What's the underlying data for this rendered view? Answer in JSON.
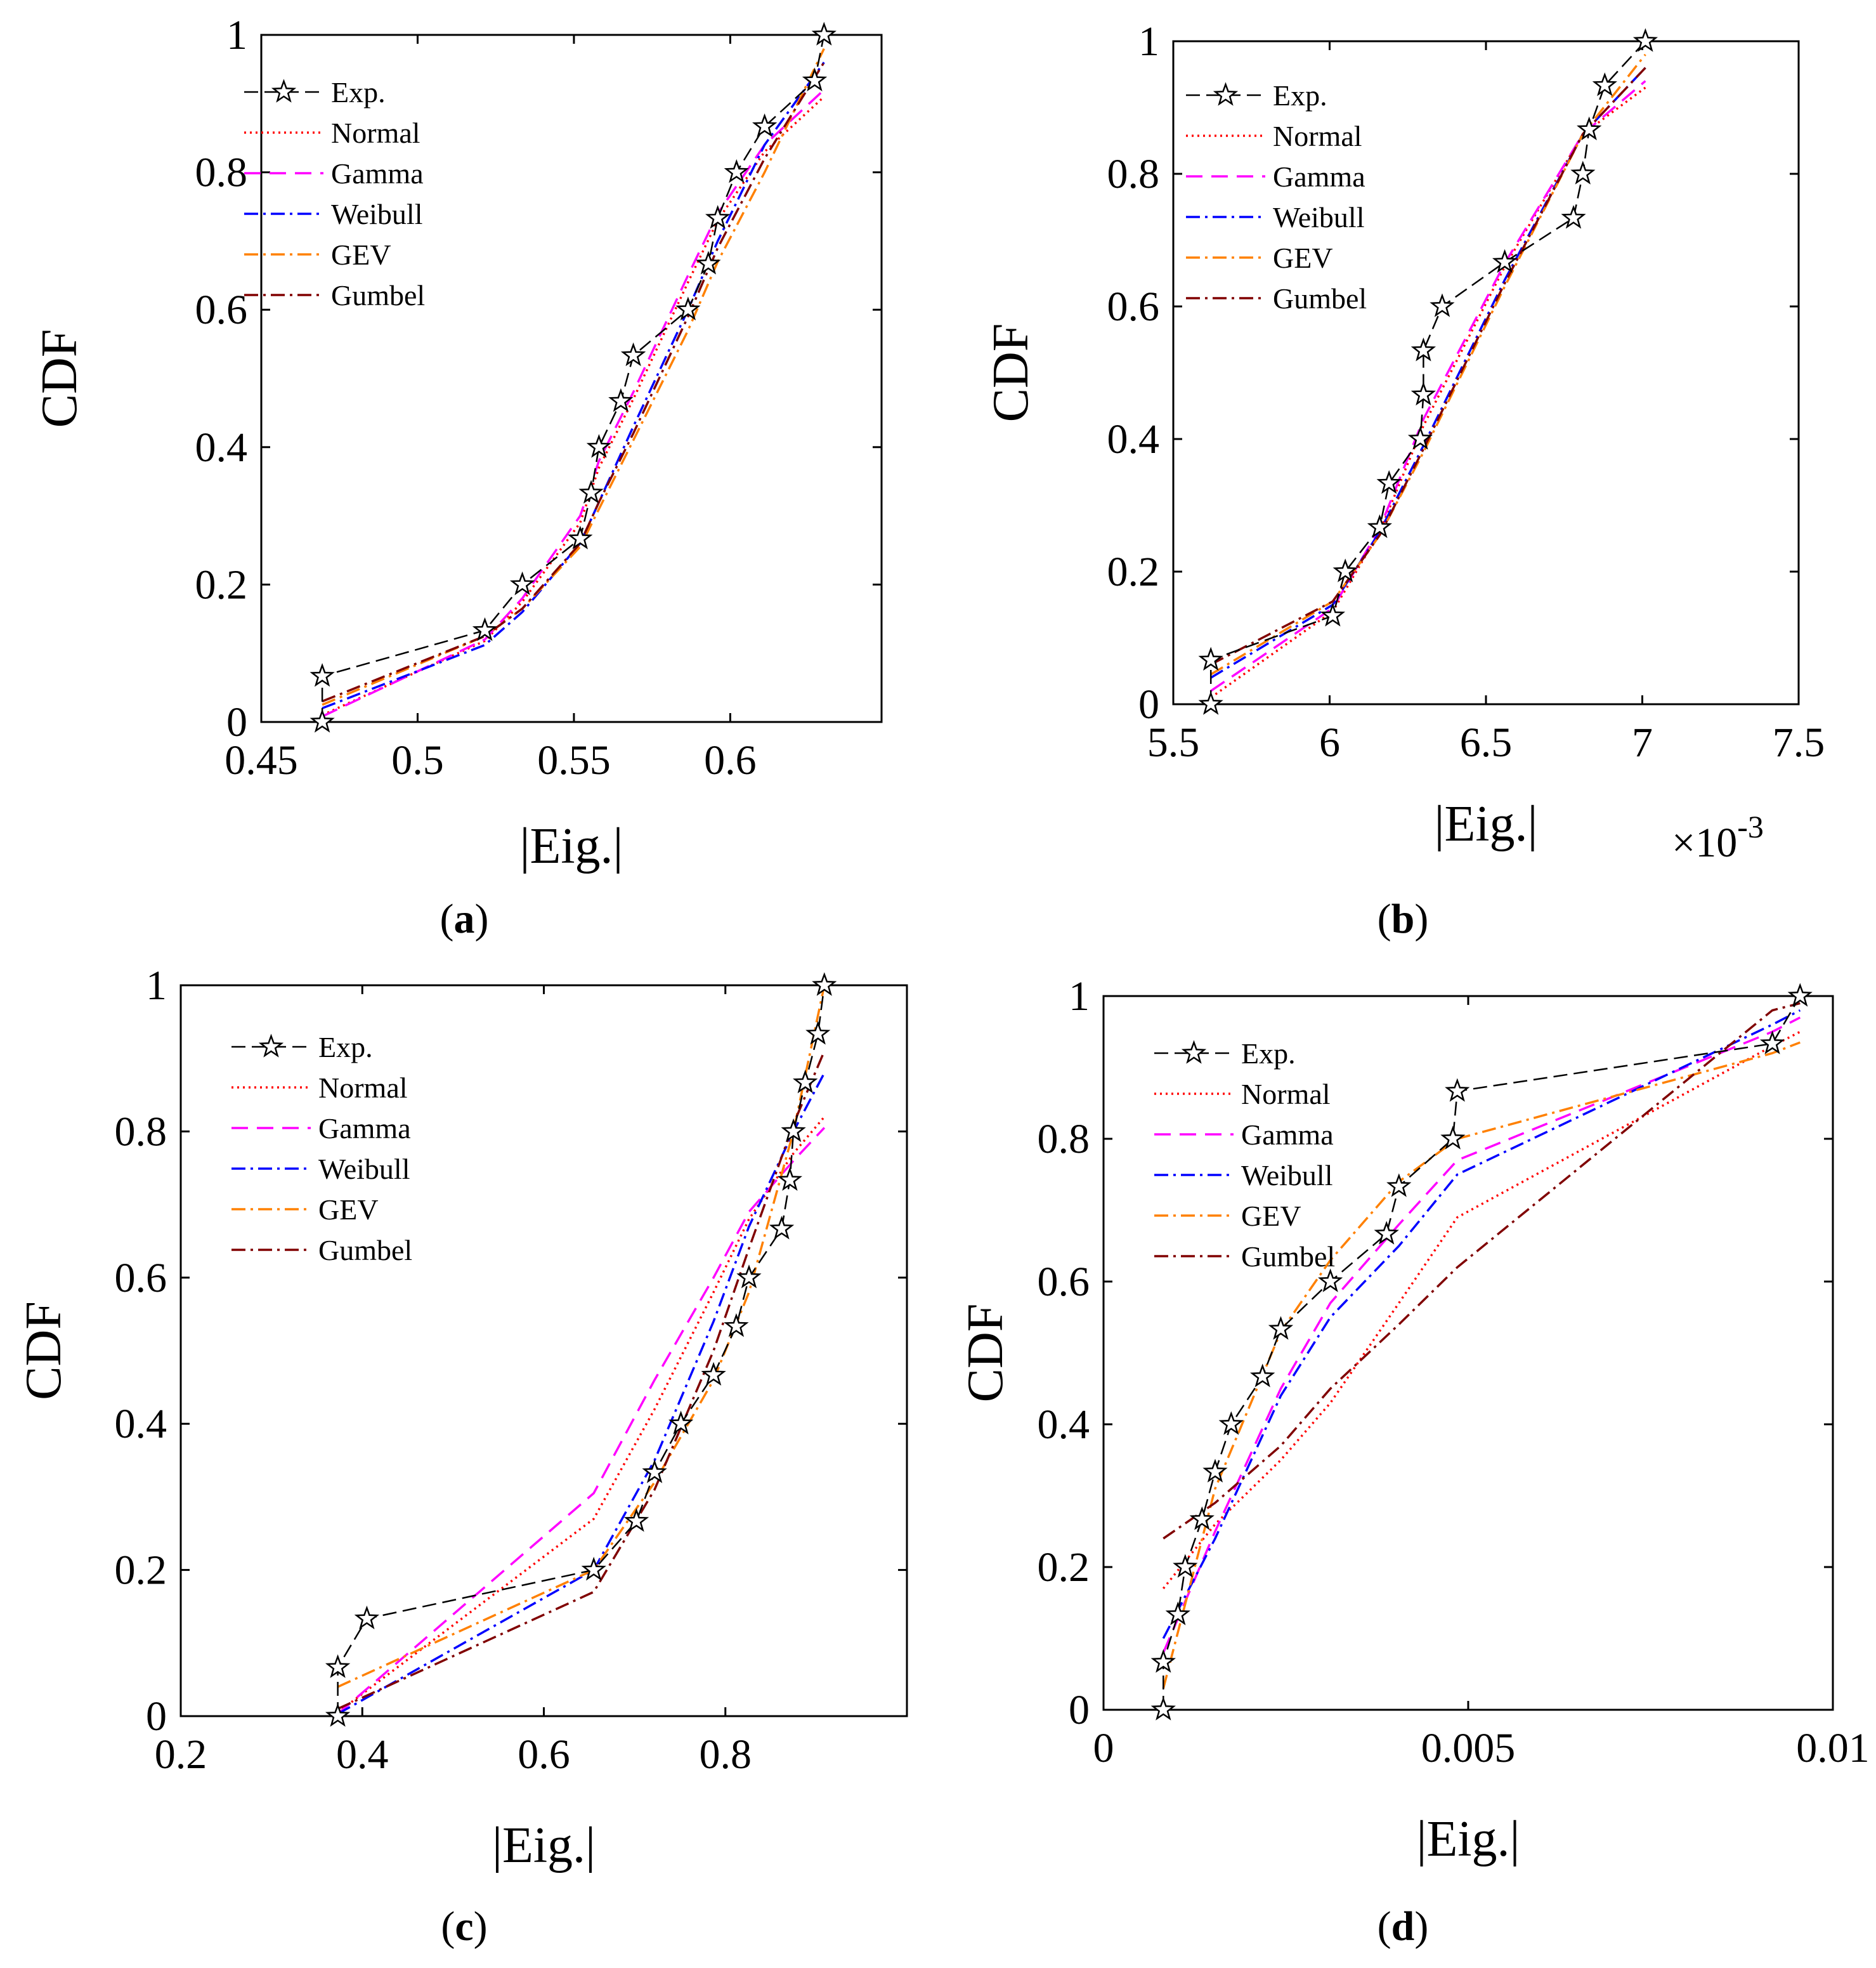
{
  "figure": {
    "panel_labels": [
      {
        "open": "(",
        "letter": "a",
        "close": ")"
      },
      {
        "open": "(",
        "letter": "b",
        "close": ")"
      },
      {
        "open": "(",
        "letter": "c",
        "close": ")"
      },
      {
        "open": "(",
        "letter": "d",
        "close": ")"
      }
    ]
  },
  "series_styles": [
    {
      "name": "Exp.",
      "color": "#000000",
      "dash": "22,10",
      "marker": "star"
    },
    {
      "name": "Normal",
      "color": "#ff0000",
      "dash": "3,6",
      "marker": "none"
    },
    {
      "name": "Gamma",
      "color": "#ff00ff",
      "dash": "26,14",
      "marker": "none"
    },
    {
      "name": "Weibull",
      "color": "#0000ff",
      "dash": "22,8,4,8",
      "marker": "none"
    },
    {
      "name": "GEV",
      "color": "#ff8000",
      "dash": "22,8,4,8",
      "marker": "none"
    },
    {
      "name": "Gumbel",
      "color": "#800000",
      "dash": "22,8,4,8",
      "marker": "none"
    }
  ],
  "chart_data": [
    {
      "type": "line",
      "panel": "a",
      "title": "",
      "xlabel": "|Eig.|",
      "ylabel": "CDF",
      "xlim": [
        0.45,
        0.6484
      ],
      "ylim": [
        0,
        1
      ],
      "xticks": [
        "0.45",
        "0.5",
        "0.55",
        "0.6"
      ],
      "xtick_values": [
        0.45,
        0.5,
        0.55,
        0.6
      ],
      "yticks": [
        "0",
        "0.2",
        "0.4",
        "0.6",
        "0.8",
        "1"
      ],
      "ytick_values": [
        0,
        0.2,
        0.4,
        0.6,
        0.8,
        1
      ],
      "exponent_label": "",
      "legend": "top-left",
      "series": [
        {
          "name": "Exp.",
          "x": [
            0.4695,
            0.4695,
            0.5215,
            0.5335,
            0.552,
            0.5555,
            0.558,
            0.565,
            0.569,
            0.5865,
            0.593,
            0.596,
            0.602,
            0.611,
            0.627,
            0.63
          ],
          "y": [
            0,
            0.0667,
            0.1333,
            0.2,
            0.2667,
            0.3333,
            0.4,
            0.4667,
            0.5333,
            0.6,
            0.6667,
            0.7333,
            0.8,
            0.8667,
            0.9333,
            1
          ]
        },
        {
          "name": "Normal",
          "x": [
            0.4695,
            0.5215,
            0.5335,
            0.552,
            0.558,
            0.569,
            0.5865,
            0.596,
            0.611,
            0.63
          ],
          "y": [
            0.01,
            0.118,
            0.175,
            0.29,
            0.37,
            0.47,
            0.64,
            0.73,
            0.83,
            0.91
          ]
        },
        {
          "name": "Gamma",
          "x": [
            0.4695,
            0.5215,
            0.5335,
            0.552,
            0.558,
            0.569,
            0.5865,
            0.596,
            0.611,
            0.63
          ],
          "y": [
            0.008,
            0.12,
            0.18,
            0.3,
            0.38,
            0.48,
            0.65,
            0.74,
            0.84,
            0.92
          ]
        },
        {
          "name": "Weibull",
          "x": [
            0.4695,
            0.5215,
            0.5335,
            0.552,
            0.558,
            0.569,
            0.5865,
            0.596,
            0.611,
            0.63
          ],
          "y": [
            0.02,
            0.112,
            0.16,
            0.26,
            0.32,
            0.43,
            0.6,
            0.7,
            0.84,
            0.96
          ]
        },
        {
          "name": "GEV",
          "x": [
            0.4695,
            0.5215,
            0.5335,
            0.552,
            0.558,
            0.569,
            0.5865,
            0.596,
            0.611,
            0.63
          ],
          "y": [
            0.025,
            0.125,
            0.165,
            0.255,
            0.31,
            0.41,
            0.57,
            0.67,
            0.8,
            0.98
          ]
        },
        {
          "name": "Gumbel",
          "x": [
            0.4695,
            0.5215,
            0.5335,
            0.552,
            0.558,
            0.569,
            0.5865,
            0.596,
            0.611,
            0.63
          ],
          "y": [
            0.03,
            0.125,
            0.165,
            0.26,
            0.32,
            0.42,
            0.59,
            0.69,
            0.82,
            0.96
          ]
        }
      ]
    },
    {
      "type": "line",
      "panel": "b",
      "title": "",
      "xlabel": "|Eig.|",
      "ylabel": "CDF",
      "xlim": [
        5.5,
        7.5
      ],
      "ylim": [
        0,
        1
      ],
      "xticks": [
        "5.5",
        "6",
        "6.5",
        "7",
        "7.5"
      ],
      "xtick_values": [
        5.5,
        6,
        6.5,
        7,
        7.5
      ],
      "yticks": [
        "0",
        "0.2",
        "0.4",
        "0.6",
        "0.8",
        "1"
      ],
      "ytick_values": [
        0,
        0.2,
        0.4,
        0.6,
        0.8,
        1
      ],
      "exponent_label": {
        "base": "×10",
        "power": "-3"
      },
      "legend": "top-left",
      "series": [
        {
          "name": "Exp.",
          "x": [
            5.62,
            5.62,
            6.01,
            6.05,
            6.16,
            6.19,
            6.29,
            6.3,
            6.3,
            6.36,
            6.56,
            6.78,
            6.81,
            6.83,
            6.88,
            7.01
          ],
          "y": [
            0,
            0.0667,
            0.1333,
            0.2,
            0.2667,
            0.3333,
            0.4,
            0.4667,
            0.5333,
            0.6,
            0.6667,
            0.7333,
            0.8,
            0.8667,
            0.9333,
            1
          ]
        },
        {
          "name": "Normal",
          "x": [
            5.62,
            6.01,
            6.16,
            6.3,
            6.56,
            6.81,
            7.01
          ],
          "y": [
            0.01,
            0.14,
            0.26,
            0.42,
            0.66,
            0.86,
            0.93
          ]
        },
        {
          "name": "Gamma",
          "x": [
            5.62,
            6.01,
            6.16,
            6.3,
            6.56,
            6.81,
            7.01
          ],
          "y": [
            0.02,
            0.145,
            0.265,
            0.43,
            0.665,
            0.86,
            0.94
          ]
        },
        {
          "name": "Weibull",
          "x": [
            5.62,
            6.01,
            6.16,
            6.3,
            6.56,
            6.81,
            7.01
          ],
          "y": [
            0.04,
            0.15,
            0.26,
            0.39,
            0.64,
            0.86,
            0.96
          ]
        },
        {
          "name": "GEV",
          "x": [
            5.62,
            6.01,
            6.16,
            6.3,
            6.56,
            6.81,
            7.01
          ],
          "y": [
            0.045,
            0.155,
            0.255,
            0.38,
            0.63,
            0.86,
            0.98
          ]
        },
        {
          "name": "Gumbel",
          "x": [
            5.62,
            6.01,
            6.16,
            6.3,
            6.56,
            6.81,
            7.01
          ],
          "y": [
            0.06,
            0.155,
            0.255,
            0.385,
            0.635,
            0.86,
            0.96
          ]
        }
      ]
    },
    {
      "type": "line",
      "panel": "c",
      "title": "",
      "xlabel": "|Eig.|",
      "ylabel": "CDF",
      "xlim": [
        0.2,
        1.0
      ],
      "ylim": [
        0,
        1
      ],
      "xticks": [
        "0.2",
        "0.4",
        "0.6",
        "0.8"
      ],
      "xtick_values": [
        0.2,
        0.4,
        0.6,
        0.8
      ],
      "yticks": [
        "0",
        "0.2",
        "0.4",
        "0.6",
        "0.8",
        "1"
      ],
      "ytick_values": [
        0,
        0.2,
        0.4,
        0.6,
        0.8,
        1
      ],
      "exponent_label": "",
      "legend": "top-left",
      "series": [
        {
          "name": "Exp.",
          "x": [
            0.373,
            0.373,
            0.405,
            0.655,
            0.702,
            0.722,
            0.751,
            0.787,
            0.812,
            0.826,
            0.862,
            0.871,
            0.875,
            0.888,
            0.902,
            0.909
          ],
          "y": [
            0,
            0.0667,
            0.1333,
            0.2,
            0.2667,
            0.3333,
            0.4,
            0.4667,
            0.5333,
            0.6,
            0.6667,
            0.7333,
            0.8,
            0.8667,
            0.9333,
            1
          ]
        },
        {
          "name": "Normal",
          "x": [
            0.373,
            0.655,
            0.722,
            0.787,
            0.826,
            0.875,
            0.909
          ],
          "y": [
            0.005,
            0.27,
            0.42,
            0.58,
            0.68,
            0.77,
            0.82
          ]
        },
        {
          "name": "Gamma",
          "x": [
            0.373,
            0.655,
            0.722,
            0.787,
            0.826,
            0.875,
            0.909
          ],
          "y": [
            0.003,
            0.305,
            0.46,
            0.6,
            0.69,
            0.76,
            0.805
          ]
        },
        {
          "name": "Weibull",
          "x": [
            0.373,
            0.655,
            0.722,
            0.787,
            0.826,
            0.875,
            0.909
          ],
          "y": [
            0.003,
            0.2,
            0.35,
            0.54,
            0.67,
            0.8,
            0.88
          ]
        },
        {
          "name": "GEV",
          "x": [
            0.373,
            0.655,
            0.722,
            0.787,
            0.826,
            0.875,
            0.909
          ],
          "y": [
            0.04,
            0.2,
            0.32,
            0.46,
            0.58,
            0.8,
            1.0
          ]
        },
        {
          "name": "Gumbel",
          "x": [
            0.373,
            0.655,
            0.722,
            0.787,
            0.826,
            0.875,
            0.909
          ],
          "y": [
            0.01,
            0.17,
            0.31,
            0.5,
            0.64,
            0.81,
            0.91
          ]
        }
      ]
    },
    {
      "type": "line",
      "panel": "d",
      "title": "",
      "xlabel": "|Eig.|",
      "ylabel": "CDF",
      "xlim": [
        0,
        0.01
      ],
      "ylim": [
        0,
        1
      ],
      "xticks": [
        "0",
        "0.005",
        "0.01"
      ],
      "xtick_values": [
        0,
        0.005,
        0.01
      ],
      "yticks": [
        "0",
        "0.2",
        "0.4",
        "0.6",
        "0.8",
        "1"
      ],
      "ytick_values": [
        0,
        0.2,
        0.4,
        0.6,
        0.8,
        1
      ],
      "exponent_label": "",
      "legend": "top-left",
      "series": [
        {
          "name": "Exp.",
          "x": [
            0.00082,
            0.00082,
            0.00102,
            0.00112,
            0.00135,
            0.00153,
            0.00175,
            0.00218,
            0.00243,
            0.00311,
            0.00388,
            0.00405,
            0.00479,
            0.00485,
            0.00917,
            0.00955
          ],
          "y": [
            0,
            0.0667,
            0.1333,
            0.2,
            0.2667,
            0.3333,
            0.4,
            0.4667,
            0.5333,
            0.6,
            0.6667,
            0.7333,
            0.8,
            0.8667,
            0.9333,
            1
          ]
        },
        {
          "name": "Normal",
          "x": [
            0.00082,
            0.00153,
            0.00243,
            0.00311,
            0.00405,
            0.00485,
            0.00917,
            0.00955
          ],
          "y": [
            0.17,
            0.26,
            0.35,
            0.43,
            0.57,
            0.69,
            0.93,
            0.95
          ]
        },
        {
          "name": "Gamma",
          "x": [
            0.00082,
            0.00153,
            0.00243,
            0.00311,
            0.00405,
            0.00485,
            0.00917,
            0.00955
          ],
          "y": [
            0.08,
            0.25,
            0.45,
            0.57,
            0.68,
            0.77,
            0.95,
            0.97
          ]
        },
        {
          "name": "Weibull",
          "x": [
            0.00082,
            0.00153,
            0.00243,
            0.00311,
            0.00405,
            0.00485,
            0.00917,
            0.00955
          ],
          "y": [
            0.1,
            0.24,
            0.44,
            0.55,
            0.65,
            0.75,
            0.96,
            0.98
          ]
        },
        {
          "name": "GEV",
          "x": [
            0.00082,
            0.00153,
            0.00243,
            0.00311,
            0.00405,
            0.00485,
            0.00917,
            0.00955
          ],
          "y": [
            0.03,
            0.31,
            0.53,
            0.63,
            0.74,
            0.8,
            0.92,
            0.935
          ]
        },
        {
          "name": "Gumbel",
          "x": [
            0.00082,
            0.00153,
            0.00243,
            0.00311,
            0.00405,
            0.00485,
            0.00917,
            0.00955
          ],
          "y": [
            0.24,
            0.29,
            0.37,
            0.45,
            0.54,
            0.62,
            0.98,
            0.99
          ]
        }
      ]
    }
  ]
}
